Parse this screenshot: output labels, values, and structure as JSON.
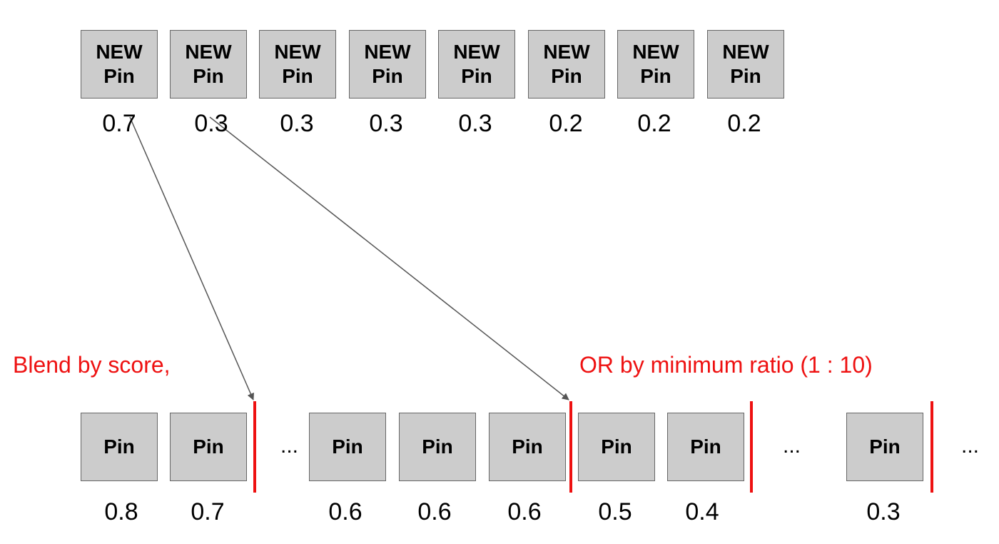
{
  "top_row": {
    "pins": [
      {
        "line1": "NEW",
        "line2": "Pin",
        "score": "0.7"
      },
      {
        "line1": "NEW",
        "line2": "Pin",
        "score": "0.3"
      },
      {
        "line1": "NEW",
        "line2": "Pin",
        "score": "0.3"
      },
      {
        "line1": "NEW",
        "line2": "Pin",
        "score": "0.3"
      },
      {
        "line1": "NEW",
        "line2": "Pin",
        "score": "0.3"
      },
      {
        "line1": "NEW",
        "line2": "Pin",
        "score": "0.2"
      },
      {
        "line1": "NEW",
        "line2": "Pin",
        "score": "0.2"
      },
      {
        "line1": "NEW",
        "line2": "Pin",
        "score": "0.2"
      }
    ]
  },
  "bottom_row": {
    "pins": [
      {
        "label": "Pin",
        "score": "0.8"
      },
      {
        "label": "Pin",
        "score": "0.7"
      },
      {
        "label": "Pin",
        "score": "0.6"
      },
      {
        "label": "Pin",
        "score": "0.6"
      },
      {
        "label": "Pin",
        "score": "0.6"
      },
      {
        "label": "Pin",
        "score": "0.5"
      },
      {
        "label": "Pin",
        "score": "0.4"
      },
      {
        "label": "Pin",
        "score": "0.3"
      }
    ],
    "ellipses": [
      "...",
      "...",
      "..."
    ]
  },
  "labels": {
    "blend_by_score": "Blend by score,",
    "min_ratio": "OR by minimum ratio (1 : 10)"
  },
  "colors": {
    "box_fill": "#cccccc",
    "box_border": "#666666",
    "accent_red": "#ee1111",
    "arrow": "#555555"
  }
}
